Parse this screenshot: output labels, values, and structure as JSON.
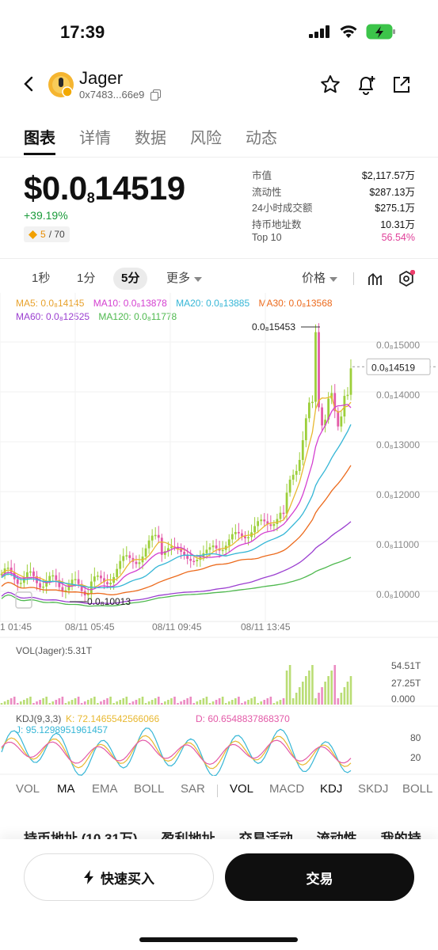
{
  "status": {
    "time": "17:39"
  },
  "header": {
    "name": "Jager",
    "address": "0x7483...66e9"
  },
  "tabs": [
    {
      "label": "图表",
      "active": true
    },
    {
      "label": "详情"
    },
    {
      "label": "数据"
    },
    {
      "label": "风险"
    },
    {
      "label": "动态"
    }
  ],
  "price": {
    "prefix": "$0.0",
    "sub": "8",
    "digits": "14519",
    "change": "+39.19%",
    "score_current": "5",
    "score_total": "/ 70"
  },
  "stats": [
    {
      "k": "市值",
      "v": "$2,117.57万"
    },
    {
      "k": "流动性",
      "v": "$287.13万"
    },
    {
      "k": "24小时成交额",
      "v": "$275.1万"
    },
    {
      "k": "持币地址数",
      "v": "10.31万"
    },
    {
      "k": "Top 10",
      "v": "56.54%"
    }
  ],
  "toolbar": {
    "t1": "1秒",
    "t2": "1分",
    "t3": "5分",
    "more": "更多",
    "price": "价格"
  },
  "ma": {
    "ma5": "MA5: 0.0₈14145",
    "ma10": "MA10: 0.0₈13878",
    "ma20": "MA20: 0.0₈13885",
    "ma30": "MA30: 0.0₈13568",
    "ma60": "MA60: 0.0₈12525",
    "ma120": "MA120: 0.0₈11778"
  },
  "colors": {
    "ma5": "#e8b830",
    "ma10": "#d43fd0",
    "ma20": "#35b6d6",
    "ma30": "#ec6a1c",
    "ma60": "#9b3fd0",
    "ma120": "#4fb94f",
    "up": "#9ccf3a",
    "down": "#e35aa8"
  },
  "chart_data": {
    "type": "candlestick",
    "y_ticks": [
      "0.0₈15000",
      "0.0₈14000",
      "0.0₈13000",
      "0.0₈12000",
      "0.0₈11000",
      "0.0₈10000"
    ],
    "x_ticks": [
      "1 01:45",
      "08/11 05:45",
      "08/11 09:45",
      "08/11 13:45"
    ],
    "current_price_label": "0.0₈14519",
    "high_label": "0.0₈15453",
    "low_label": "0.0₈10013",
    "vol_title": "VOL(Jager):5.31T",
    "vol_ticks": [
      "54.51T",
      "27.25T",
      "0.000"
    ],
    "kdj_title": "KDJ(9,3,3)",
    "kdj_k": "K: 72.1465542566066",
    "kdj_d": "D: 60.6548837868370",
    "kdj_j": "J: 95.1298951961457",
    "kdj_ticks": [
      "80",
      "20"
    ]
  },
  "indicators_left": [
    "VOL",
    "MA",
    "EMA",
    "BOLL",
    "SAR"
  ],
  "indicators_right": [
    "VOL",
    "MACD",
    "KDJ",
    "SKDJ",
    "BOLL"
  ],
  "sub_tabs": [
    "持币地址 (10.31万)",
    "盈利地址",
    "交易活动",
    "流动性",
    "我的持"
  ],
  "footer": {
    "quick_buy": "快速买入",
    "trade": "交易"
  }
}
